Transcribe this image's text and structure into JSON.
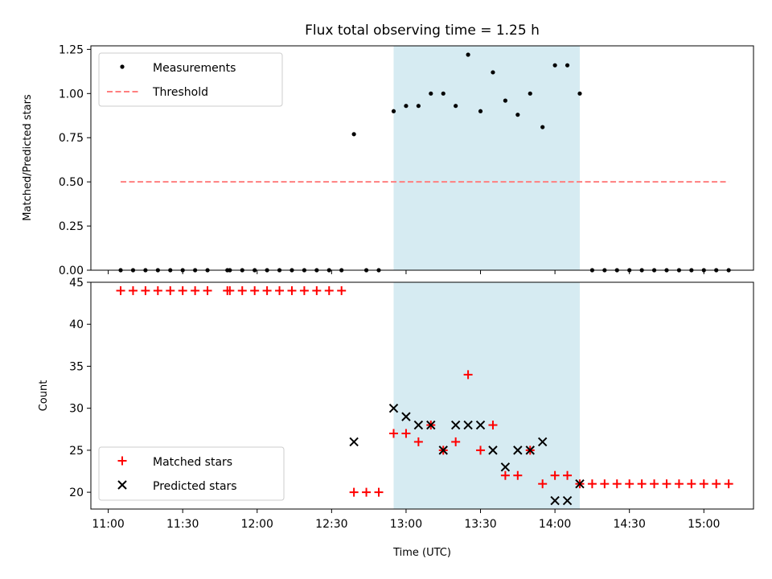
{
  "title": "Flux total observing time = 1.25 h",
  "colors": {
    "measurement": "#000000",
    "threshold": "#ff7f7f",
    "matched": "#ff0000",
    "predicted": "#000000",
    "shade": "#add8e6"
  },
  "chart_data": [
    {
      "type": "scatter",
      "panel": "top",
      "ylabel": "Matched/Predicted stars",
      "xlabel": "",
      "ylim": [
        0,
        1.27
      ],
      "xlim": [
        "10:53",
        "15:20"
      ],
      "yticks": [
        "0.00",
        "0.25",
        "0.50",
        "0.75",
        "1.00",
        "1.25"
      ],
      "ytick_values": [
        0,
        0.25,
        0.5,
        0.75,
        1.0,
        1.25
      ],
      "legend": {
        "placement": "upper left",
        "entries": [
          "Measurements",
          "Threshold"
        ]
      },
      "shaded_interval": [
        "12:55",
        "14:10"
      ],
      "threshold": {
        "name": "Threshold",
        "y": 0.5,
        "x": [
          "11:05",
          "15:10"
        ]
      },
      "series": [
        {
          "name": "Measurements",
          "points": [
            [
              "11:05",
              0
            ],
            [
              "11:10",
              0
            ],
            [
              "11:15",
              0
            ],
            [
              "11:20",
              0
            ],
            [
              "11:25",
              0
            ],
            [
              "11:30",
              0
            ],
            [
              "11:35",
              0
            ],
            [
              "11:40",
              0
            ],
            [
              "11:48",
              0
            ],
            [
              "11:49",
              0
            ],
            [
              "11:54",
              0
            ],
            [
              "11:59",
              0
            ],
            [
              "12:04",
              0
            ],
            [
              "12:09",
              0
            ],
            [
              "12:14",
              0
            ],
            [
              "12:19",
              0
            ],
            [
              "12:24",
              0
            ],
            [
              "12:29",
              0
            ],
            [
              "12:34",
              0
            ],
            [
              "12:39",
              0.77
            ],
            [
              "12:44",
              0
            ],
            [
              "12:49",
              0
            ],
            [
              "12:55",
              0.9
            ],
            [
              "13:00",
              0.93
            ],
            [
              "13:05",
              0.93
            ],
            [
              "13:10",
              1.0
            ],
            [
              "13:15",
              1.0
            ],
            [
              "13:20",
              0.93
            ],
            [
              "13:25",
              1.22
            ],
            [
              "13:30",
              0.9
            ],
            [
              "13:35",
              1.12
            ],
            [
              "13:40",
              0.96
            ],
            [
              "13:45",
              0.88
            ],
            [
              "13:50",
              1.0
            ],
            [
              "13:55",
              0.81
            ],
            [
              "14:00",
              1.16
            ],
            [
              "14:05",
              1.16
            ],
            [
              "14:10",
              1.0
            ],
            [
              "14:15",
              0
            ],
            [
              "14:20",
              0
            ],
            [
              "14:25",
              0
            ],
            [
              "14:30",
              0
            ],
            [
              "14:35",
              0
            ],
            [
              "14:40",
              0
            ],
            [
              "14:45",
              0
            ],
            [
              "14:50",
              0
            ],
            [
              "14:55",
              0
            ],
            [
              "15:00",
              0
            ],
            [
              "15:05",
              0
            ],
            [
              "15:10",
              0
            ]
          ]
        }
      ]
    },
    {
      "type": "scatter",
      "panel": "bottom",
      "ylabel": "Count",
      "xlabel": "Time (UTC)",
      "ylim": [
        18,
        45
      ],
      "xlim": [
        "10:53",
        "15:20"
      ],
      "yticks": [
        "20",
        "25",
        "30",
        "35",
        "40",
        "45"
      ],
      "ytick_values": [
        20,
        25,
        30,
        35,
        40,
        45
      ],
      "xticks": [
        "11:00",
        "11:30",
        "12:00",
        "12:30",
        "13:00",
        "13:30",
        "14:00",
        "14:30",
        "15:00"
      ],
      "legend": {
        "placement": "lower left",
        "entries": [
          "Matched stars",
          "Predicted stars"
        ]
      },
      "shaded_interval": [
        "12:55",
        "14:10"
      ],
      "series": [
        {
          "name": "Matched stars",
          "marker": "plus",
          "points": [
            [
              "11:05",
              44
            ],
            [
              "11:10",
              44
            ],
            [
              "11:15",
              44
            ],
            [
              "11:20",
              44
            ],
            [
              "11:25",
              44
            ],
            [
              "11:30",
              44
            ],
            [
              "11:35",
              44
            ],
            [
              "11:40",
              44
            ],
            [
              "11:48",
              44
            ],
            [
              "11:49",
              44
            ],
            [
              "11:54",
              44
            ],
            [
              "11:59",
              44
            ],
            [
              "12:04",
              44
            ],
            [
              "12:09",
              44
            ],
            [
              "12:14",
              44
            ],
            [
              "12:19",
              44
            ],
            [
              "12:24",
              44
            ],
            [
              "12:29",
              44
            ],
            [
              "12:34",
              44
            ],
            [
              "12:39",
              20
            ],
            [
              "12:44",
              20
            ],
            [
              "12:49",
              20
            ],
            [
              "12:55",
              27
            ],
            [
              "13:00",
              27
            ],
            [
              "13:05",
              26
            ],
            [
              "13:10",
              28
            ],
            [
              "13:15",
              25
            ],
            [
              "13:20",
              26
            ],
            [
              "13:25",
              34
            ],
            [
              "13:30",
              25
            ],
            [
              "13:35",
              28
            ],
            [
              "13:40",
              22
            ],
            [
              "13:45",
              22
            ],
            [
              "13:50",
              25
            ],
            [
              "13:55",
              21
            ],
            [
              "14:00",
              22
            ],
            [
              "14:05",
              22
            ],
            [
              "14:10",
              21
            ],
            [
              "14:15",
              21
            ],
            [
              "14:20",
              21
            ],
            [
              "14:25",
              21
            ],
            [
              "14:30",
              21
            ],
            [
              "14:35",
              21
            ],
            [
              "14:40",
              21
            ],
            [
              "14:45",
              21
            ],
            [
              "14:50",
              21
            ],
            [
              "14:55",
              21
            ],
            [
              "15:00",
              21
            ],
            [
              "15:05",
              21
            ],
            [
              "15:10",
              21
            ]
          ]
        },
        {
          "name": "Predicted stars",
          "marker": "x",
          "points": [
            [
              "12:39",
              26
            ],
            [
              "12:55",
              30
            ],
            [
              "13:00",
              29
            ],
            [
              "13:05",
              28
            ],
            [
              "13:10",
              28
            ],
            [
              "13:15",
              25
            ],
            [
              "13:20",
              28
            ],
            [
              "13:25",
              28
            ],
            [
              "13:30",
              28
            ],
            [
              "13:35",
              25
            ],
            [
              "13:40",
              23
            ],
            [
              "13:45",
              25
            ],
            [
              "13:50",
              25
            ],
            [
              "13:55",
              26
            ],
            [
              "14:00",
              19
            ],
            [
              "14:05",
              19
            ],
            [
              "14:10",
              21
            ]
          ]
        }
      ]
    }
  ]
}
